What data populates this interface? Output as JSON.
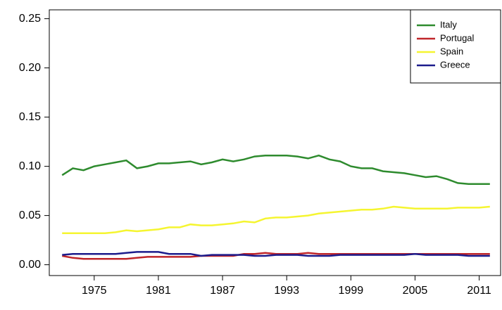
{
  "chart_data": {
    "type": "line",
    "x": [
      1972,
      1973,
      1974,
      1975,
      1976,
      1977,
      1978,
      1979,
      1980,
      1981,
      1982,
      1983,
      1984,
      1985,
      1986,
      1987,
      1988,
      1989,
      1990,
      1991,
      1992,
      1993,
      1994,
      1995,
      1996,
      1997,
      1998,
      1999,
      2000,
      2001,
      2002,
      2003,
      2004,
      2005,
      2006,
      2007,
      2008,
      2009,
      2010,
      2011,
      2012
    ],
    "series": [
      {
        "name": "Italy",
        "color": "#2e8b2e",
        "values": [
          0.091,
          0.098,
          0.096,
          0.1,
          0.102,
          0.104,
          0.106,
          0.098,
          0.1,
          0.103,
          0.103,
          0.104,
          0.105,
          0.102,
          0.104,
          0.107,
          0.105,
          0.107,
          0.11,
          0.111,
          0.111,
          0.111,
          0.11,
          0.108,
          0.111,
          0.107,
          0.105,
          0.1,
          0.098,
          0.098,
          0.095,
          0.094,
          0.093,
          0.091,
          0.089,
          0.09,
          0.087,
          0.083,
          0.082,
          0.082,
          0.082
        ]
      },
      {
        "name": "Portugal",
        "color": "#c0262a",
        "values": [
          0.009,
          0.007,
          0.006,
          0.006,
          0.006,
          0.006,
          0.006,
          0.007,
          0.008,
          0.008,
          0.008,
          0.008,
          0.008,
          0.009,
          0.009,
          0.009,
          0.009,
          0.011,
          0.011,
          0.012,
          0.011,
          0.011,
          0.011,
          0.012,
          0.011,
          0.011,
          0.011,
          0.011,
          0.011,
          0.011,
          0.011,
          0.011,
          0.011,
          0.011,
          0.011,
          0.011,
          0.011,
          0.011,
          0.011,
          0.011,
          0.011
        ]
      },
      {
        "name": "Spain",
        "color": "#f5f530",
        "values": [
          0.032,
          0.032,
          0.032,
          0.032,
          0.032,
          0.033,
          0.035,
          0.034,
          0.035,
          0.036,
          0.038,
          0.038,
          0.041,
          0.04,
          0.04,
          0.041,
          0.042,
          0.044,
          0.043,
          0.047,
          0.048,
          0.048,
          0.049,
          0.05,
          0.052,
          0.053,
          0.054,
          0.055,
          0.056,
          0.056,
          0.057,
          0.059,
          0.058,
          0.057,
          0.057,
          0.057,
          0.057,
          0.058,
          0.058,
          0.058,
          0.059
        ]
      },
      {
        "name": "Greece",
        "color": "#1c1c8c",
        "values": [
          0.01,
          0.011,
          0.011,
          0.011,
          0.011,
          0.011,
          0.012,
          0.013,
          0.013,
          0.013,
          0.011,
          0.011,
          0.011,
          0.009,
          0.01,
          0.01,
          0.01,
          0.01,
          0.009,
          0.009,
          0.01,
          0.01,
          0.01,
          0.009,
          0.009,
          0.009,
          0.01,
          0.01,
          0.01,
          0.01,
          0.01,
          0.01,
          0.01,
          0.011,
          0.01,
          0.01,
          0.01,
          0.01,
          0.009,
          0.009,
          0.009
        ]
      }
    ],
    "xlim": [
      1970.8,
      2013.0
    ],
    "ylim": [
      -0.011,
      0.259
    ],
    "xticks": [
      1975,
      1981,
      1987,
      1993,
      1999,
      2005,
      2011
    ],
    "yticks": [
      {
        "value": 0,
        "label": "0.00"
      },
      0.05,
      {
        "value": 0.1,
        "label": "0.10"
      },
      0.15,
      {
        "value": 0.2,
        "label": "0.20"
      },
      0.25
    ],
    "legend": "top-right"
  }
}
